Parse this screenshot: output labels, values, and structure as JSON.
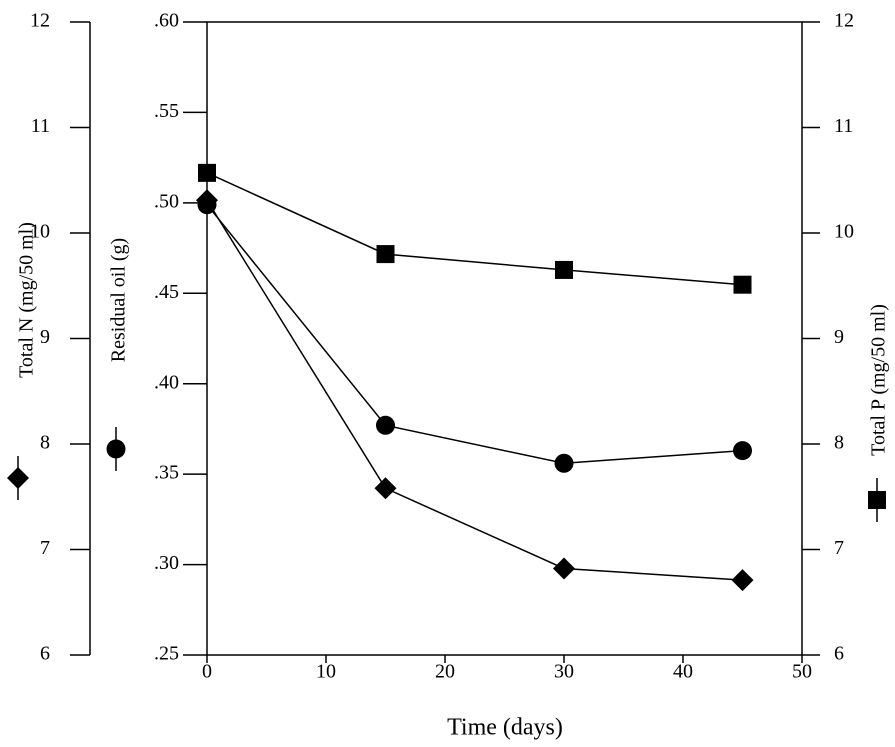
{
  "chart_data": {
    "type": "line",
    "x_label": "Time (days)",
    "x": [
      0,
      15,
      30,
      45
    ],
    "xlim": [
      0,
      50
    ],
    "xticks": [
      0,
      10,
      20,
      30,
      40,
      50
    ],
    "ylim": [
      0.25,
      0.6
    ],
    "yticks": [
      {
        "value": 0.25,
        "label": ".25"
      },
      {
        "value": 0.3,
        "label": ".30"
      },
      {
        "value": 0.35,
        "label": ".35"
      },
      {
        "value": 0.4,
        "label": ".40"
      },
      {
        "value": 0.45,
        "label": ".45"
      },
      {
        "value": 0.5,
        "label": ".50"
      },
      {
        "value": 0.55,
        "label": ".55"
      },
      {
        "value": 0.6,
        "label": ".60"
      }
    ],
    "y2lim": [
      6,
      12
    ],
    "y2ticks": [
      6,
      7,
      8,
      9,
      10,
      11,
      12
    ],
    "y3lim": [
      6,
      12
    ],
    "y3ticks": [
      6,
      7,
      8,
      9,
      10,
      11,
      12
    ],
    "series": [
      {
        "name": "Total N (mg/50 ml)",
        "color": "#000000",
        "marker": "diamond",
        "axis": "y3",
        "values": [
          10.31,
          7.58,
          6.82,
          6.71
        ]
      },
      {
        "name": "Residual oil (g)",
        "color": "#000000",
        "marker": "circle",
        "axis": "y",
        "values": [
          0.499,
          0.377,
          0.356,
          0.363
        ]
      },
      {
        "name": "Total P (mg/50 ml)",
        "color": "#000000",
        "marker": "square",
        "axis": "y2",
        "values": [
          10.57,
          9.8,
          9.65,
          9.51
        ]
      }
    ]
  }
}
